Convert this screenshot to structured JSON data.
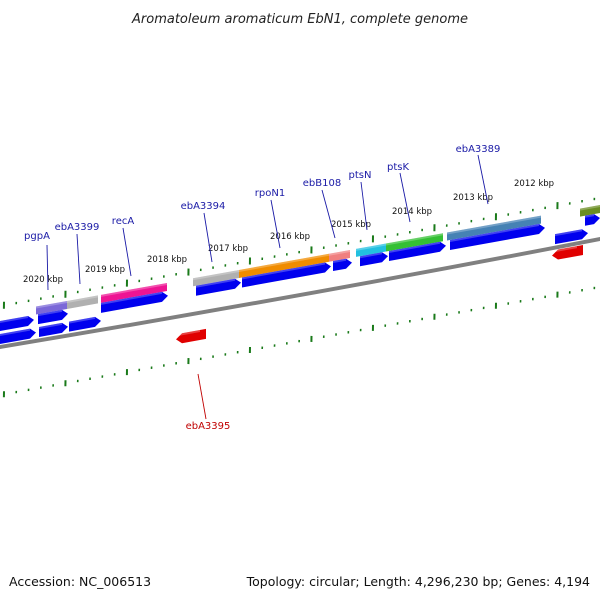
{
  "title": "Aromatoleum aromaticum EbN1, complete genome",
  "footer": {
    "accession": "Accession: NC_006513",
    "summary": "Topology: circular; Length: 4,296,230 bp; Genes: 4,194"
  },
  "kbp_labels": [
    "2020 kbp",
    "2019 kbp",
    "2018 kbp",
    "2017 kbp",
    "2016 kbp",
    "2015 kbp",
    "2014 kbp",
    "2013 kbp",
    "2012 kbp"
  ],
  "gene_labels": [
    {
      "name": "pgpA",
      "strand": "plus"
    },
    {
      "name": "ebA3399",
      "strand": "plus"
    },
    {
      "name": "recA",
      "strand": "plus"
    },
    {
      "name": "ebA3394",
      "strand": "plus"
    },
    {
      "name": "rpoN1",
      "strand": "plus"
    },
    {
      "name": "ebB108",
      "strand": "plus"
    },
    {
      "name": "ptsN",
      "strand": "plus"
    },
    {
      "name": "ptsK",
      "strand": "plus"
    },
    {
      "name": "ebA3389",
      "strand": "plus"
    },
    {
      "name": "ebA3395",
      "strand": "minus"
    }
  ],
  "colors": {
    "cds": "#0000ee",
    "reverse_cds": "#e00000",
    "backbone": "#808080",
    "ticks": "#1a7a1a",
    "label": "#1a1aa6",
    "label_red": "#c00000",
    "cog_purple": "#7b68d8",
    "cog_gray": "#b0b0b0",
    "cog_pink": "#ee1493",
    "cog_orange": "#f08c00",
    "cog_salmon": "#f08080",
    "cog_cyan": "#22c0e0",
    "cog_green": "#34c034",
    "cog_steel": "#4682b4",
    "cog_olive": "#6b8e23"
  }
}
